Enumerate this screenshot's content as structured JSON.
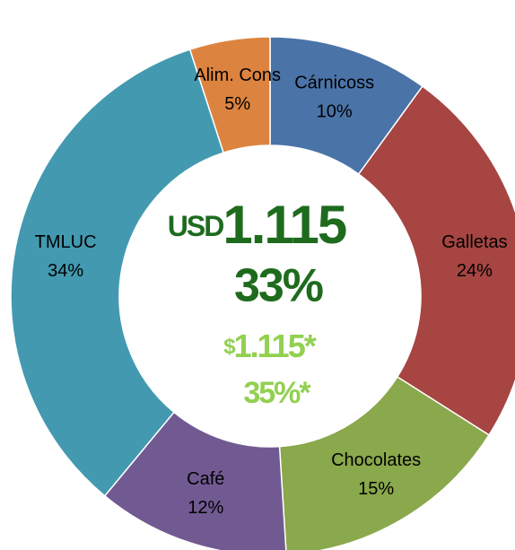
{
  "chart_data": {
    "type": "donut",
    "categories": [
      "Cárnicoss",
      "Galletas",
      "Chocolates",
      "Café",
      "TMLUC",
      "Alim. Cons"
    ],
    "values": [
      10,
      24,
      15,
      12,
      34,
      5
    ],
    "value_labels": [
      "10%",
      "24%",
      "15%",
      "12%",
      "34%",
      "5%"
    ],
    "colors": [
      "#4a74a8",
      "#a64542",
      "#8aa84c",
      "#715a91",
      "#4399b0",
      "#dc843f"
    ],
    "center_text": {
      "line1_prefix": "USD",
      "line1": "1.115",
      "line2": "33%",
      "line3_prefix": "$",
      "line3": "1.115*",
      "line4": "35%*"
    }
  }
}
